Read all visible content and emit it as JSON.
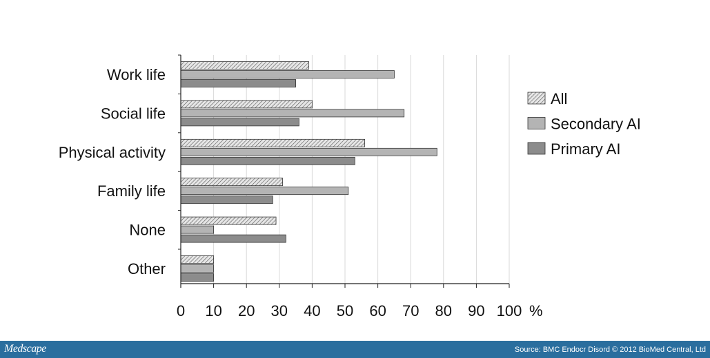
{
  "chart_data": {
    "type": "bar",
    "orientation": "horizontal",
    "categories": [
      "Work life",
      "Social life",
      "Physical activity",
      "Family life",
      "None",
      "Other"
    ],
    "series": [
      {
        "name": "All",
        "values": [
          39,
          40,
          56,
          31,
          29,
          10
        ],
        "fill": "hatched",
        "color": "#c8c8c8"
      },
      {
        "name": "Secondary AI",
        "values": [
          65,
          68,
          78,
          51,
          10,
          10
        ],
        "color": "#b4b4b4"
      },
      {
        "name": "Primary AI",
        "values": [
          35,
          36,
          53,
          28,
          32,
          10
        ],
        "color": "#8c8c8c"
      }
    ],
    "x_ticks": [
      "0",
      "10",
      "20",
      "30",
      "40",
      "50",
      "60",
      "70",
      "80",
      "90",
      "100"
    ],
    "x_unit": "%",
    "xlim": [
      0,
      100
    ],
    "grid": true,
    "legend_position": "right"
  },
  "footer": {
    "brand": "Medscape",
    "source": "Source: BMC Endocr Disord © 2012 BioMed Central, Ltd"
  }
}
